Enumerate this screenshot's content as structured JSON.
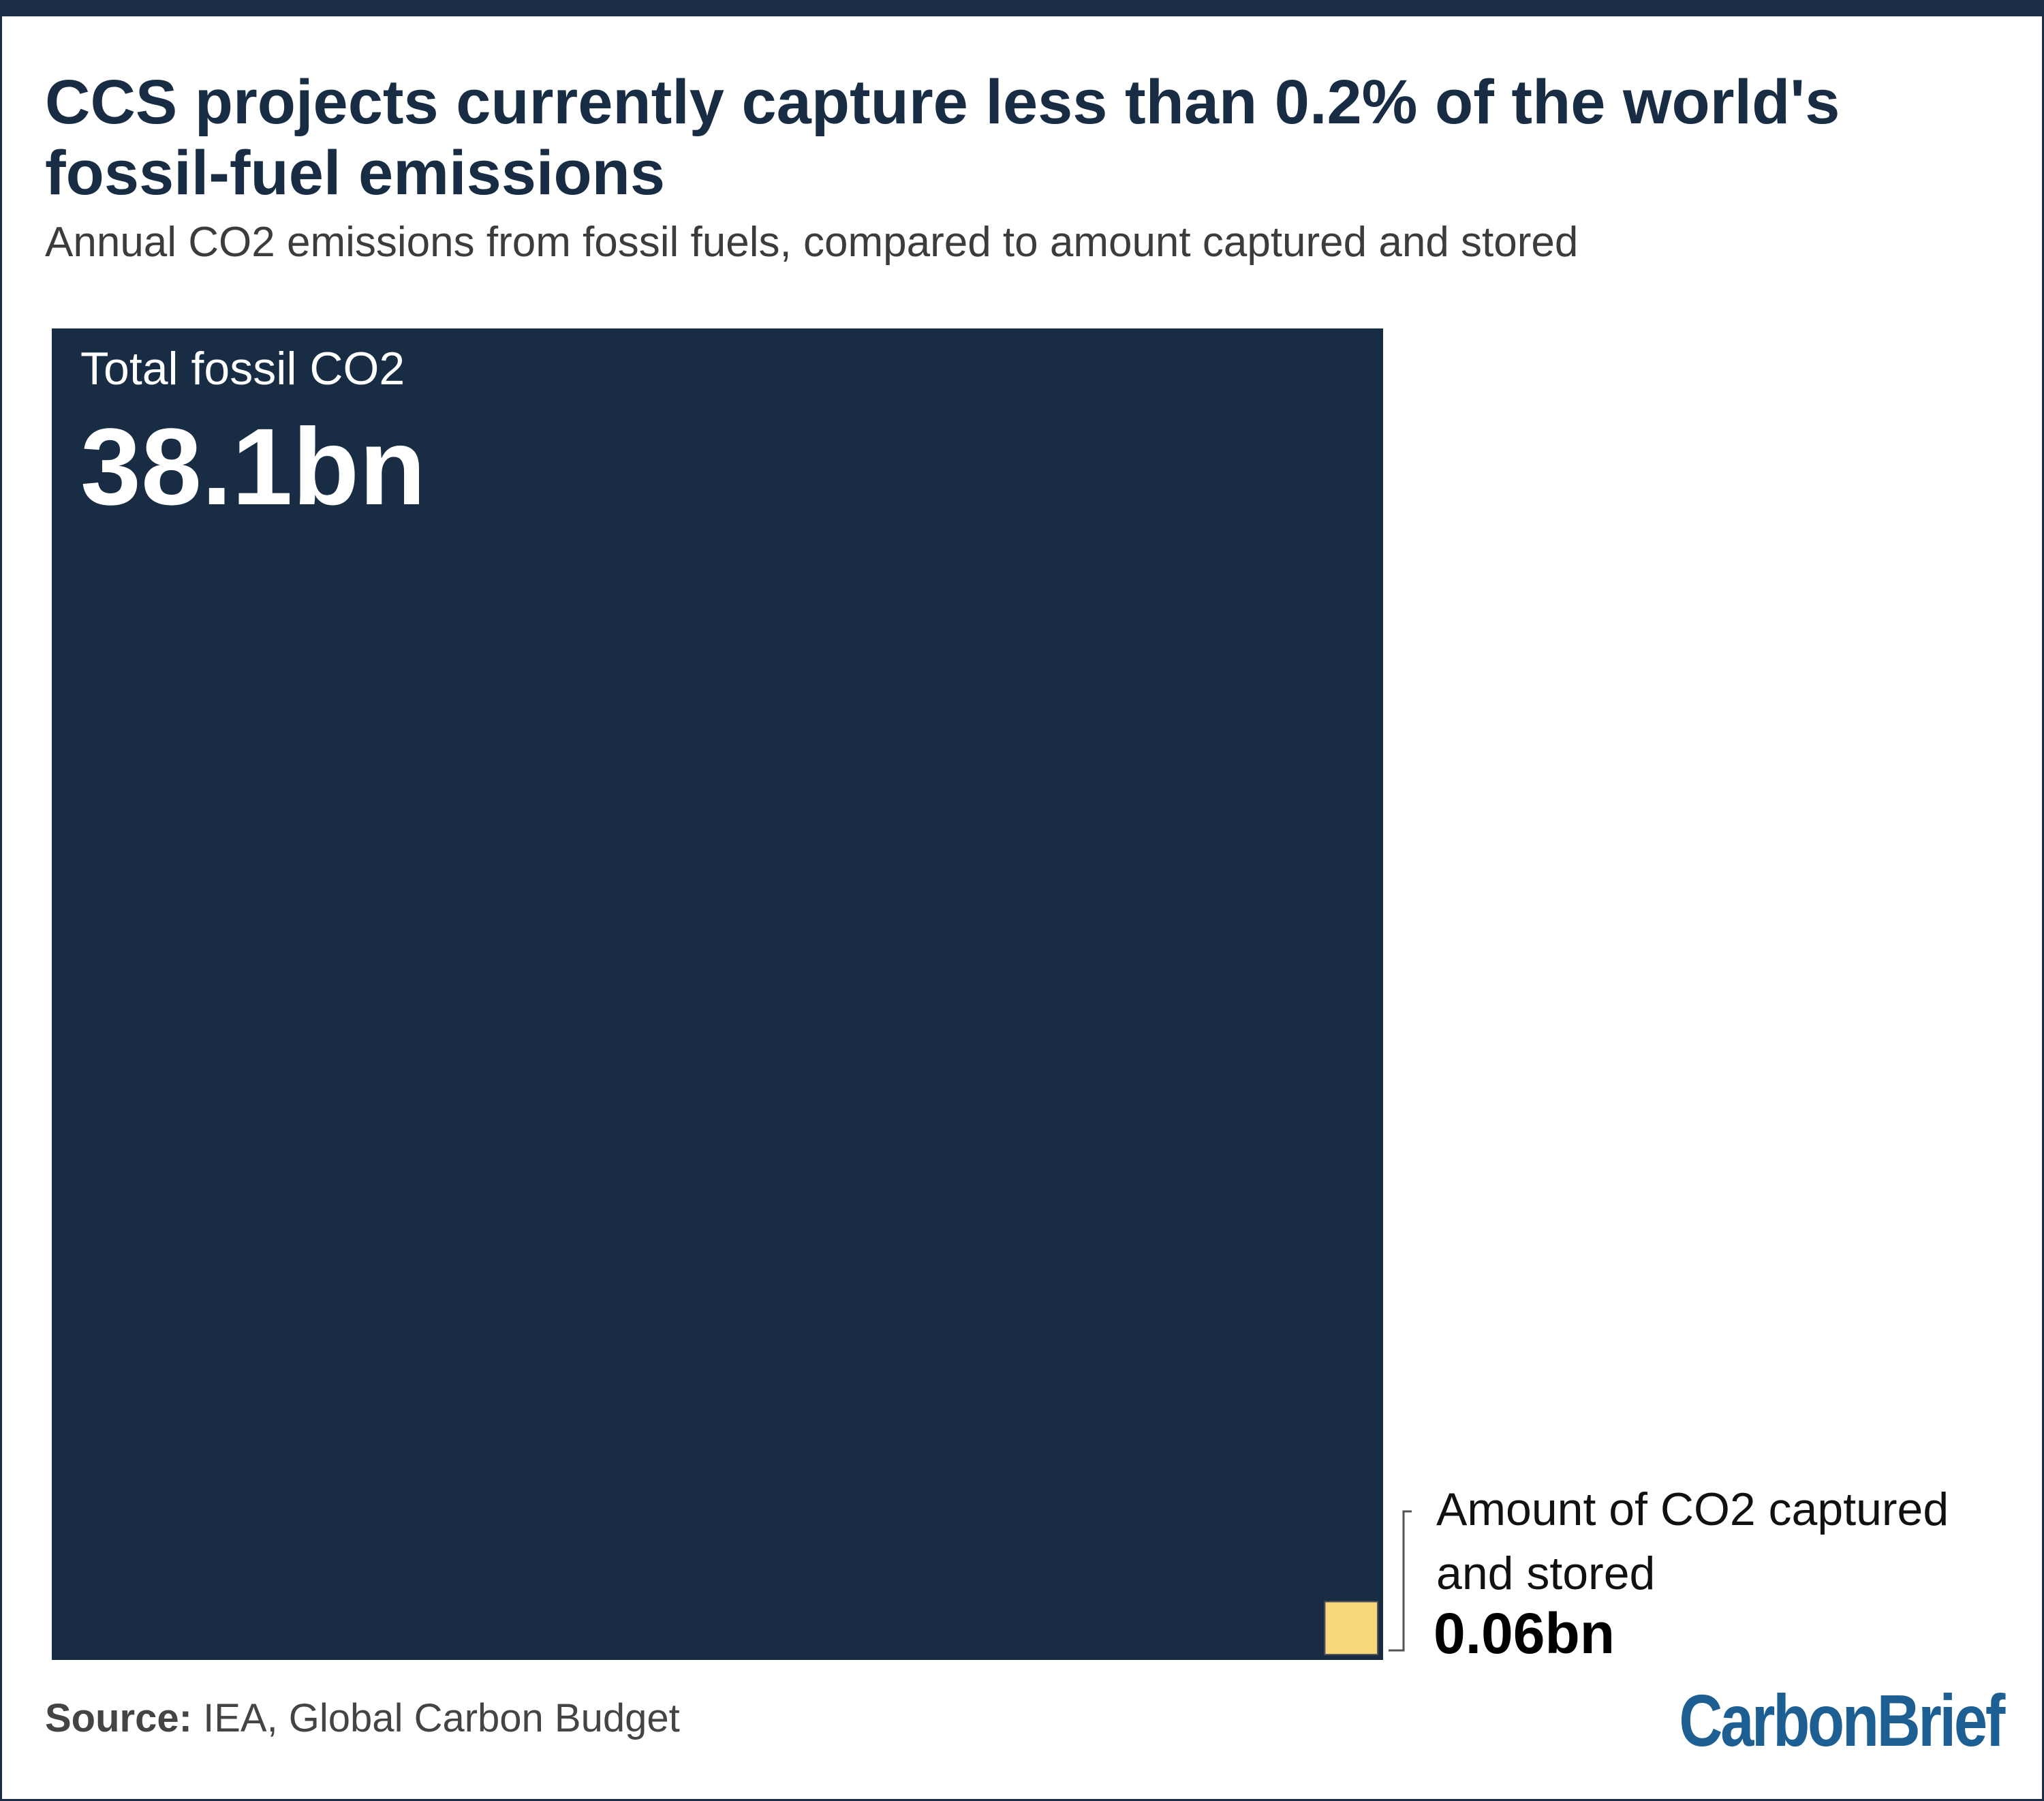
{
  "title": "CCS projects currently capture less than 0.2% of the world's fossil-fuel emissions",
  "subtitle": "Annual CO2 emissions from fossil fuels, compared to amount captured and stored",
  "source_label": "Source:",
  "source_text": "IEA, Global Carbon Budget",
  "logo": "CarbonBrief",
  "colors": {
    "total": "#182c43",
    "captured": "#f7d87a",
    "title": "#182c43",
    "logo": "#1e5f93"
  },
  "chart_data": {
    "type": "area",
    "title": "CCS projects currently capture less than 0.2% of the world's fossil-fuel emissions",
    "subtitle": "Annual CO2 emissions from fossil fuels, compared to amount captured and stored",
    "series": [
      {
        "name": "Total fossil CO2",
        "value": 38.1,
        "value_label": "38.1bn",
        "label_lines": [
          "Total fossil CO2"
        ]
      },
      {
        "name": "Amount of CO2 captured and stored",
        "value": 0.06,
        "value_label": "0.06bn",
        "label_lines": [
          "Amount of CO2 captured",
          "and stored"
        ]
      }
    ]
  }
}
